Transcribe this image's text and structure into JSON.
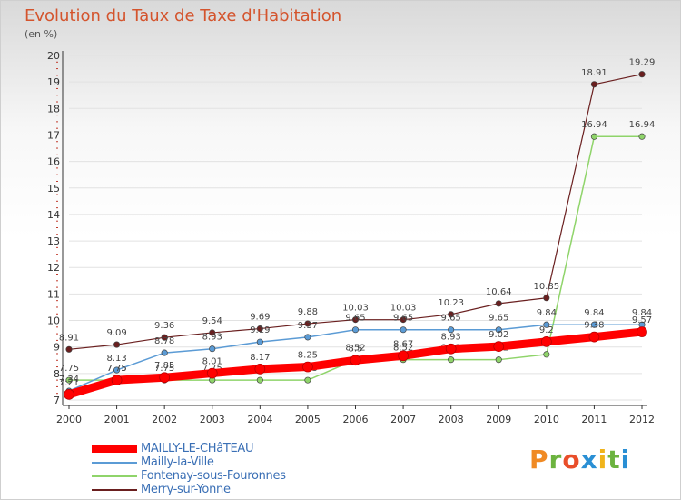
{
  "title": "Evolution du Taux de Taxe d'Habitation",
  "subtitle": "(en %)",
  "logo": {
    "letters": [
      "P",
      "r",
      "o",
      "x",
      "i",
      "t",
      "i"
    ],
    "colors": [
      "#f08a24",
      "#6cb33f",
      "#e94e2a",
      "#2a8fd4",
      "#f0b41c",
      "#6cb33f",
      "#2a8fd4"
    ]
  },
  "chart_data": {
    "type": "line",
    "categories": [
      "2000",
      "2001",
      "2002",
      "2003",
      "2004",
      "2005",
      "2006",
      "2007",
      "2008",
      "2009",
      "2010",
      "2011",
      "2012"
    ],
    "yticks": [
      "7",
      "8",
      "9",
      "10",
      "11",
      "12",
      "13",
      "14",
      "15",
      "16",
      "17",
      "18",
      "19",
      "20"
    ],
    "ylim": [
      7,
      20
    ],
    "series": [
      {
        "name": "Merry-sur-Yonne",
        "color": "#6a1f1f",
        "width": 1.2,
        "values": [
          8.91,
          9.09,
          9.36,
          9.54,
          9.69,
          9.88,
          10.03,
          10.03,
          10.23,
          10.64,
          10.85,
          18.91,
          19.29
        ],
        "labels": [
          "8.91",
          "9.09",
          "9.36",
          "9.54",
          "9.69",
          "9.88",
          "10.03",
          "10.03",
          "10.23",
          "10.64",
          "10.85",
          "18.91",
          "19.29"
        ]
      },
      {
        "name": "Fontenay-sous-Fouronnes",
        "color": "#8fd46a",
        "width": 1.5,
        "values": [
          7.75,
          7.75,
          7.75,
          7.75,
          7.75,
          7.75,
          8.52,
          8.52,
          8.52,
          8.52,
          8.72,
          16.94,
          16.94
        ],
        "labels": [
          "7.75",
          "7.75",
          "7.75",
          "7.75",
          "7.75",
          "7.75",
          "8.52",
          "8.52",
          "8.52",
          "8.52",
          "8.72",
          "16.94",
          "16.94"
        ]
      },
      {
        "name": "Mailly-la-Ville",
        "color": "#5b9bd5",
        "width": 1.5,
        "values": [
          7.34,
          8.13,
          8.78,
          8.93,
          9.19,
          9.37,
          9.65,
          9.65,
          9.65,
          9.65,
          9.84,
          9.84,
          9.84
        ],
        "labels": [
          "7.34",
          "8.13",
          "8.78",
          "8.93",
          "9.19",
          "9.37",
          "9.65",
          "9.65",
          "9.65",
          "9.65",
          "9.84",
          "9.84",
          "9.84"
        ]
      },
      {
        "name": "MAILLY-LE-CHâTEAU",
        "color": "#ff0000",
        "width": 9,
        "values": [
          7.21,
          7.75,
          7.85,
          8.01,
          8.17,
          8.25,
          8.5,
          8.67,
          8.93,
          9.02,
          9.2,
          9.38,
          9.57
        ],
        "labels": [
          "7.21",
          "7.75",
          "7.85",
          "8.01",
          "8.17",
          "8.25",
          "8.5",
          "8.67",
          "8.93",
          "9.02",
          "9.2",
          "9.38",
          "9.57"
        ]
      }
    ],
    "legend_order": [
      "MAILLY-LE-CHâTEAU",
      "Mailly-la-Ville",
      "Fontenay-sous-Fouronnes",
      "Merry-sur-Yonne"
    ]
  }
}
